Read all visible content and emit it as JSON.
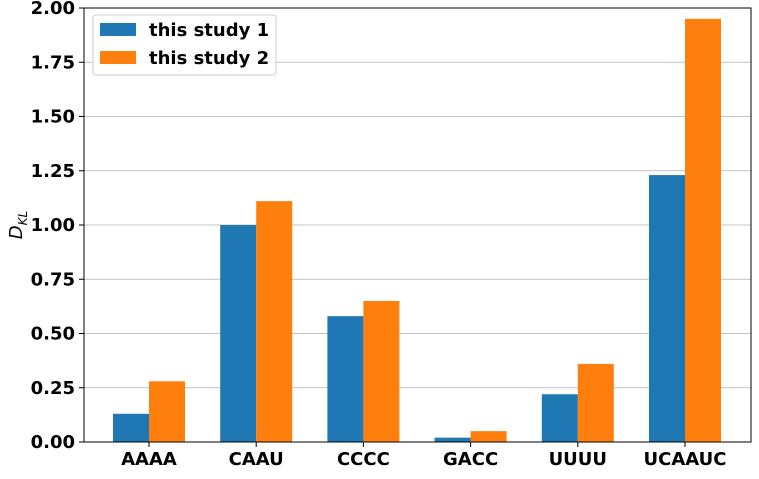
{
  "chart_data": {
    "type": "bar",
    "categories": [
      "AAAA",
      "CAAU",
      "CCCC",
      "GACC",
      "UUUU",
      "UCAAUC"
    ],
    "series": [
      {
        "name": "this study 1",
        "color": "#1f77b4",
        "values": [
          0.13,
          1.0,
          0.58,
          0.02,
          0.22,
          1.23
        ]
      },
      {
        "name": "this study 2",
        "color": "#ff7f0e",
        "values": [
          0.28,
          1.11,
          0.65,
          0.05,
          0.36,
          1.95
        ]
      }
    ],
    "ylabel_main": "D",
    "ylabel_sub": "KL",
    "ylim": [
      0,
      2.0
    ],
    "yticks": [
      "0.00",
      "0.25",
      "0.50",
      "0.75",
      "1.00",
      "1.25",
      "1.50",
      "1.75",
      "2.00"
    ],
    "grid": "horizontal",
    "legend_position": "top-left"
  }
}
